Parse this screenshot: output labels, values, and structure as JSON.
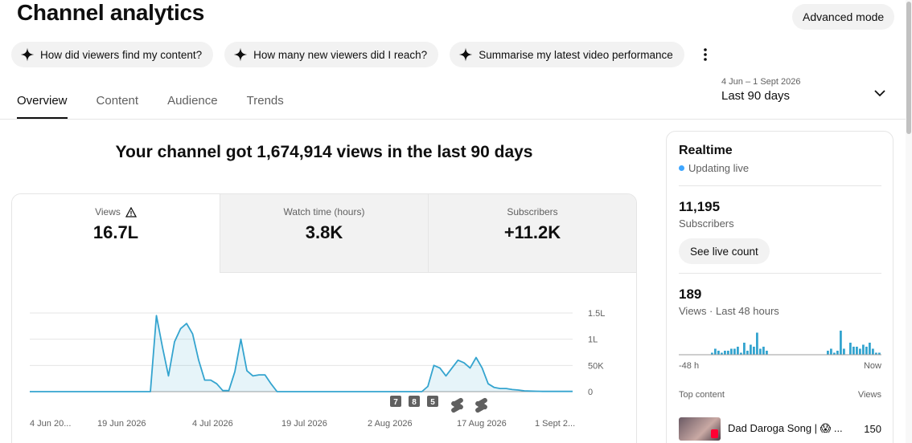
{
  "page": {
    "title": "Channel analytics",
    "advanced_mode": "Advanced mode"
  },
  "chips": [
    {
      "label": "How did viewers find my content?"
    },
    {
      "label": "How many new viewers did I reach?"
    },
    {
      "label": "Summarise my latest video performance"
    }
  ],
  "tabs": [
    {
      "label": "Overview",
      "active": true
    },
    {
      "label": "Content",
      "active": false
    },
    {
      "label": "Audience",
      "active": false
    },
    {
      "label": "Trends",
      "active": false
    }
  ],
  "date_selector": {
    "range": "4 Jun – 1 Sept 2026",
    "period": "Last 90 days"
  },
  "headline": "Your channel got 1,674,914 views in the last 90 days",
  "metrics": [
    {
      "label": "Views",
      "value": "16.7L",
      "warning_icon": true,
      "active": true
    },
    {
      "label": "Watch time (hours)",
      "value": "3.8K",
      "active": false
    },
    {
      "label": "Subscribers",
      "value": "+11.2K",
      "active": false
    }
  ],
  "chart_data": {
    "type": "area",
    "x_tick_labels": [
      "4 Jun 20...",
      "19 Jun 2026",
      "4 Jul 2026",
      "19 Jul 2026",
      "2 Aug 2026",
      "17 Aug 2026",
      "1 Sept 2..."
    ],
    "y_tick_labels": [
      "1.5L",
      "1L",
      "50K",
      "0"
    ],
    "y_tick_values": [
      150000,
      100000,
      50000,
      0
    ],
    "ylim": [
      0,
      150000
    ],
    "series": [
      {
        "color": "#34a4cf",
        "values": [
          0,
          0,
          0,
          0,
          0,
          0,
          0,
          0,
          0,
          0,
          0,
          0,
          0,
          0,
          0,
          0,
          0,
          0,
          0,
          0,
          0,
          145000,
          85000,
          30000,
          95000,
          120000,
          130000,
          110000,
          60000,
          22000,
          22000,
          15000,
          2000,
          2000,
          38000,
          100000,
          40000,
          30000,
          32000,
          32000,
          15000,
          0,
          0,
          0,
          0,
          0,
          0,
          0,
          0,
          0,
          0,
          0,
          0,
          0,
          0,
          0,
          0,
          0,
          0,
          0,
          0,
          0,
          0,
          0,
          0,
          0,
          10000,
          50000,
          45000,
          30000,
          45000,
          60000,
          55000,
          45000,
          65000,
          45000,
          15000,
          8000,
          6000,
          6000,
          4000,
          3000,
          1500,
          1000,
          700,
          500,
          500,
          500,
          500,
          500,
          500
        ]
      }
    ],
    "annotations": [
      "7",
      "8",
      "5",
      "shorts-icon",
      "shorts-icon"
    ]
  },
  "realtime": {
    "title": "Realtime",
    "status": "Updating live",
    "subscribers_value": "11,195",
    "subscribers_label": "Subscribers",
    "see_live_count": "See live count",
    "views_value": "189",
    "views_label": "Views · Last 48 hours",
    "bar_chart": {
      "type": "bar",
      "x_tick_labels": [
        "-48 h",
        "Now"
      ],
      "color": "#34a4cf",
      "values": [
        0,
        0,
        0,
        0,
        0,
        0,
        0,
        0,
        0,
        0,
        1,
        3,
        2,
        1,
        2,
        2,
        3,
        3,
        4,
        1,
        6,
        2,
        5,
        4,
        11,
        3,
        4,
        2,
        0,
        0,
        0,
        0,
        0,
        0,
        0,
        0,
        0,
        0,
        0,
        0,
        0,
        0,
        0,
        0,
        0,
        0,
        2,
        3,
        1,
        2,
        12,
        3,
        0,
        6,
        4,
        4,
        3,
        5,
        4,
        6,
        3,
        1,
        1
      ]
    },
    "top_content_label": "Top content",
    "views_col_label": "Views",
    "top_items": [
      {
        "title": "Dad Daroga Song | 😱 ...",
        "views": "150"
      }
    ]
  }
}
